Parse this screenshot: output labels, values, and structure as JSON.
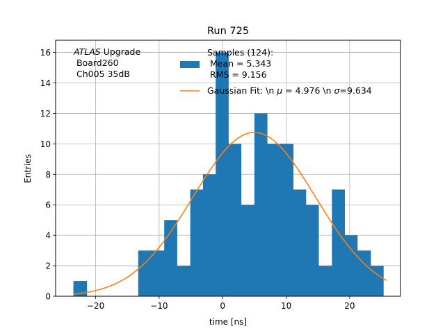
{
  "chart_data": {
    "type": "bar",
    "title": "Run 725",
    "xlabel": "time [ns]",
    "ylabel": "Entries",
    "xlim": [
      -26.3,
      28.0
    ],
    "ylim": [
      0,
      16.8
    ],
    "xticks": [
      -20,
      -10,
      0,
      10,
      20
    ],
    "yticks": [
      0,
      2,
      4,
      6,
      8,
      10,
      12,
      14,
      16
    ],
    "grid": true,
    "bin_edges": [
      -23.5,
      -21.4,
      -19.4,
      -17.4,
      -15.3,
      -13.3,
      -11.3,
      -9.2,
      -7.2,
      -5.1,
      -3.1,
      -1.1,
      0.9,
      2.9,
      5.0,
      7.0,
      9.0,
      11.1,
      13.1,
      15.1,
      17.2,
      19.2,
      21.2,
      23.3,
      25.3
    ],
    "values": [
      1,
      0,
      0,
      0,
      0,
      3,
      3,
      5,
      2,
      7,
      8,
      16,
      10,
      6,
      12,
      10,
      10,
      7,
      6,
      2,
      7,
      4,
      3,
      2
    ],
    "bar_color": "#1f77b4",
    "fit": {
      "label": "Gaussian Fit: \\n $\\mu$ = 4.976 \\n $\\sigma$=9.634",
      "mu": 4.976,
      "sigma": 9.634,
      "amplitude": 10.75,
      "x_range": [
        -23.5,
        25.8
      ],
      "color": "#ff7f0e"
    },
    "annotation": {
      "line1_italic": "ATLAS",
      "line1_rest": " Upgrade",
      "line2": " Board260",
      "line3": " Ch005 35dB"
    },
    "legend": {
      "position": "top-center",
      "hist_line1": "Samples (124):",
      "hist_line2": " Mean = 5.343",
      "hist_line3": " RMS = 9.156",
      "fit_prefix": "Gaussian Fit: \\n ",
      "fit_mu_symbol": "μ",
      "fit_mid": " = 4.976 \\n ",
      "fit_sigma_symbol": "σ",
      "fit_suffix": "=9.634"
    }
  }
}
